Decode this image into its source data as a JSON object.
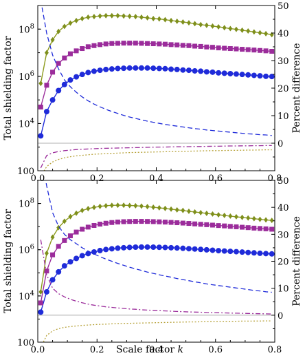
{
  "figure": {
    "xlabel_text": "Scale factor ",
    "xlabel_var": "k"
  },
  "colors": {
    "blue": "#1f2bd9",
    "purple": "#9b2c9b",
    "olive": "#8c9a1c",
    "olive_marker": "#7e8f1c",
    "dotted": "#b7a23a",
    "zero_line": "#999999"
  },
  "chart_data": [
    {
      "type": "line",
      "panel": "top",
      "x": [
        0.01,
        0.03,
        0.05,
        0.07,
        0.09,
        0.11,
        0.13,
        0.15,
        0.17,
        0.19,
        0.21,
        0.23,
        0.25,
        0.27,
        0.29,
        0.31,
        0.33,
        0.35,
        0.37,
        0.39,
        0.41,
        0.43,
        0.45,
        0.47,
        0.49,
        0.51,
        0.53,
        0.55,
        0.57,
        0.59,
        0.61,
        0.63,
        0.65,
        0.67,
        0.69,
        0.71,
        0.73,
        0.75,
        0.77,
        0.79
      ],
      "xlim": [
        0,
        0.8
      ],
      "xticks": [
        "0.0",
        "0.2",
        "0.4",
        "0.6",
        "0.8"
      ],
      "ylabel_left": "Total shielding factor",
      "yscale_left": "log",
      "ylim_left": [
        100,
        1000000000
      ],
      "yticks_left": [
        "100",
        "10^4",
        "10^6",
        "10^8"
      ],
      "ylabel_right": "Percent difference",
      "ylim_right": [
        -10,
        50
      ],
      "yticks_right": [
        "0",
        "10",
        "20",
        "30",
        "40",
        "50"
      ],
      "series": [
        {
          "color": "blue",
          "marker": "circle",
          "axis": "left",
          "values": [
            3000,
            32000,
            100000,
            250000,
            450000,
            700000,
            950000,
            1200000,
            1450000,
            1650000,
            1800000,
            1950000,
            2050000,
            2150000,
            2200000,
            2250000,
            2250000,
            2250000,
            2250000,
            2200000,
            2150000,
            2100000,
            2000000,
            1950000,
            1850000,
            1800000,
            1700000,
            1650000,
            1550000,
            1500000,
            1400000,
            1350000,
            1300000,
            1250000,
            1200000,
            1150000,
            1100000,
            1050000,
            1000000,
            980000
          ]
        },
        {
          "color": "purple",
          "marker": "square",
          "axis": "left",
          "values": [
            50000,
            420000,
            1500000,
            3500000,
            6000000,
            9000000,
            12000000,
            15000000,
            18000000,
            20000000,
            22000000,
            23500000,
            24500000,
            25000000,
            25500000,
            25500000,
            25500000,
            25000000,
            24500000,
            24000000,
            23500000,
            23000000,
            22000000,
            21500000,
            20500000,
            20000000,
            19000000,
            18500000,
            17500000,
            17000000,
            16000000,
            15500000,
            15000000,
            14500000,
            14000000,
            13500000,
            13000000,
            12500000,
            12000000,
            11500000
          ]
        },
        {
          "color": "olive",
          "marker": "diamond",
          "axis": "left",
          "values": [
            500000,
            10000000,
            35000000,
            80000000,
            130000000,
            180000000,
            230000000,
            280000000,
            320000000,
            340000000,
            360000000,
            370000000,
            370000000,
            370000000,
            360000000,
            350000000,
            340000000,
            320000000,
            300000000,
            280000000,
            270000000,
            250000000,
            230000000,
            215000000,
            200000000,
            185000000,
            170000000,
            155000000,
            145000000,
            135000000,
            125000000,
            115000000,
            105000000,
            98000000,
            90000000,
            83000000,
            76000000,
            70000000,
            64000000,
            58000000
          ]
        },
        {
          "color": "blue",
          "style": "dashed",
          "axis": "right",
          "values": [
            52,
            40,
            32,
            27,
            23,
            20.5,
            18.5,
            16.8,
            15.4,
            14.2,
            13.2,
            12.3,
            11.5,
            10.8,
            10.1,
            9.5,
            9.0,
            8.5,
            8.0,
            7.6,
            7.2,
            6.8,
            6.5,
            6.2,
            5.9,
            5.6,
            5.3,
            5.1,
            4.8,
            4.6,
            4.4,
            4.2,
            4.0,
            3.8,
            3.6,
            3.4,
            3.3,
            3.1,
            3.0,
            2.8
          ]
        },
        {
          "color": "purple",
          "style": "dash-dot",
          "axis": "right",
          "values": [
            -9,
            -4.5,
            -3.5,
            -3.0,
            -2.7,
            -2.5,
            -2.3,
            -2.2,
            -2.1,
            -2.0,
            -1.9,
            -1.85,
            -1.8,
            -1.75,
            -1.7,
            -1.65,
            -1.6,
            -1.55,
            -1.5,
            -1.45,
            -1.4,
            -1.4,
            -1.35,
            -1.3,
            -1.3,
            -1.25,
            -1.2,
            -1.2,
            -1.15,
            -1.1,
            -1.1,
            -1.05,
            -1.0,
            -1.0,
            -0.95,
            -0.95,
            -0.9,
            -0.9,
            -0.85,
            -0.85
          ]
        },
        {
          "color": "dotted",
          "style": "dotted",
          "axis": "right",
          "values": [
            -12,
            -8.5,
            -6.8,
            -5.9,
            -5.3,
            -4.9,
            -4.6,
            -4.4,
            -4.2,
            -4.0,
            -3.9,
            -3.8,
            -3.7,
            -3.6,
            -3.5,
            -3.4,
            -3.35,
            -3.3,
            -3.25,
            -3.2,
            -3.15,
            -3.1,
            -3.05,
            -3.0,
            -2.95,
            -2.9,
            -2.85,
            -2.8,
            -2.75,
            -2.7,
            -2.7,
            -2.65,
            -2.6,
            -2.6,
            -2.55,
            -2.5,
            -2.5,
            -2.45,
            -2.4,
            -2.4
          ]
        }
      ]
    },
    {
      "type": "line",
      "panel": "bottom",
      "x": [
        0.01,
        0.03,
        0.05,
        0.07,
        0.09,
        0.11,
        0.13,
        0.15,
        0.17,
        0.19,
        0.21,
        0.23,
        0.25,
        0.27,
        0.29,
        0.31,
        0.33,
        0.35,
        0.37,
        0.39,
        0.41,
        0.43,
        0.45,
        0.47,
        0.49,
        0.51,
        0.53,
        0.55,
        0.57,
        0.59,
        0.61,
        0.63,
        0.65,
        0.67,
        0.69,
        0.71,
        0.73,
        0.75,
        0.77,
        0.79
      ],
      "xlim": [
        0,
        0.8
      ],
      "xticks": [
        "0.0",
        "0.2",
        "0.4",
        "0.6",
        "0.8"
      ],
      "ylabel_left": "Total shielding factor",
      "yscale_left": "log",
      "ylim_left": [
        100,
        1000000000
      ],
      "yticks_left": [
        "100",
        "10^4",
        "10^6",
        "10^8"
      ],
      "ylabel_right": "Percent difference",
      "ylim_right": [
        -10,
        50
      ],
      "yticks_right": [
        "0",
        "10",
        "20",
        "30",
        "40",
        "50"
      ],
      "series": [
        {
          "color": "blue",
          "marker": "circle",
          "axis": "left",
          "values": [
            2000,
            15000,
            50000,
            110000,
            200000,
            300000,
            420000,
            550000,
            680000,
            800000,
            920000,
            1020000,
            1100000,
            1170000,
            1220000,
            1260000,
            1290000,
            1300000,
            1300000,
            1290000,
            1270000,
            1250000,
            1220000,
            1190000,
            1150000,
            1110000,
            1070000,
            1030000,
            990000,
            950000,
            910000,
            880000,
            850000,
            820000,
            790000,
            760000,
            730000,
            700000,
            680000,
            660000
          ]
        },
        {
          "color": "purple",
          "marker": "square",
          "axis": "left",
          "values": [
            5000,
            120000,
            600000,
            1400000,
            2500000,
            4000000,
            5800000,
            7700000,
            9500000,
            11200000,
            12800000,
            14000000,
            15000000,
            15800000,
            16300000,
            16600000,
            16800000,
            16800000,
            16700000,
            16400000,
            16100000,
            15700000,
            15200000,
            14700000,
            14200000,
            13700000,
            13100000,
            12600000,
            12100000,
            11600000,
            11100000,
            10700000,
            10200000,
            9800000,
            9400000,
            9000000,
            8600000,
            8300000,
            8000000,
            7700000
          ]
        },
        {
          "color": "olive",
          "marker": "diamond",
          "axis": "left",
          "values": [
            15000,
            700000,
            3500000,
            9000000,
            17000000,
            27000000,
            38000000,
            50000000,
            60000000,
            68000000,
            75000000,
            80000000,
            83000000,
            84000000,
            84000000,
            82000000,
            80000000,
            77000000,
            73000000,
            69000000,
            65000000,
            61000000,
            57000000,
            53000000,
            50000000,
            46000000,
            43000000,
            40000000,
            37500000,
            35000000,
            32500000,
            30500000,
            28500000,
            26500000,
            25000000,
            23500000,
            22000000,
            20500000,
            19500000,
            18500000
          ]
        },
        {
          "color": "blue",
          "style": "dashed",
          "axis": "right",
          "values": [
            60,
            48,
            38,
            33,
            30,
            28,
            26.5,
            25,
            23.8,
            22.7,
            21.7,
            20.8,
            20.0,
            19.2,
            18.5,
            17.8,
            17.2,
            16.6,
            16.0,
            15.5,
            15.0,
            14.5,
            14.1,
            13.6,
            13.2,
            12.8,
            12.4,
            12.0,
            11.6,
            11.3,
            11.0,
            10.7,
            10.4,
            10.1,
            9.8,
            9.5,
            9.2,
            9.0,
            8.7,
            8.5
          ]
        },
        {
          "color": "purple",
          "style": "dash-dot",
          "axis": "right",
          "values": [
            28,
            15,
            10,
            8.0,
            6.8,
            5.9,
            5.2,
            4.6,
            4.1,
            3.7,
            3.4,
            3.1,
            2.9,
            2.7,
            2.5,
            2.3,
            2.2,
            2.0,
            1.9,
            1.8,
            1.7,
            1.6,
            1.5,
            1.4,
            1.3,
            1.2,
            1.15,
            1.1,
            1.0,
            0.95,
            0.9,
            0.85,
            0.8,
            0.75,
            0.7,
            0.65,
            0.6,
            0.55,
            0.5,
            0.45
          ]
        },
        {
          "color": "dotted",
          "style": "dotted",
          "axis": "right",
          "values": [
            -12,
            -7.5,
            -5.8,
            -5.0,
            -4.5,
            -4.2,
            -4.0,
            -3.8,
            -3.65,
            -3.5,
            -3.4,
            -3.3,
            -3.2,
            -3.1,
            -3.05,
            -3.0,
            -2.95,
            -2.9,
            -2.85,
            -2.8,
            -2.75,
            -2.7,
            -2.65,
            -2.6,
            -2.55,
            -2.5,
            -2.5,
            -2.45,
            -2.4,
            -2.4,
            -2.35,
            -2.3,
            -2.3,
            -2.25,
            -2.2,
            -2.2,
            -2.15,
            -2.15,
            -2.1,
            -2.1
          ]
        }
      ]
    }
  ]
}
